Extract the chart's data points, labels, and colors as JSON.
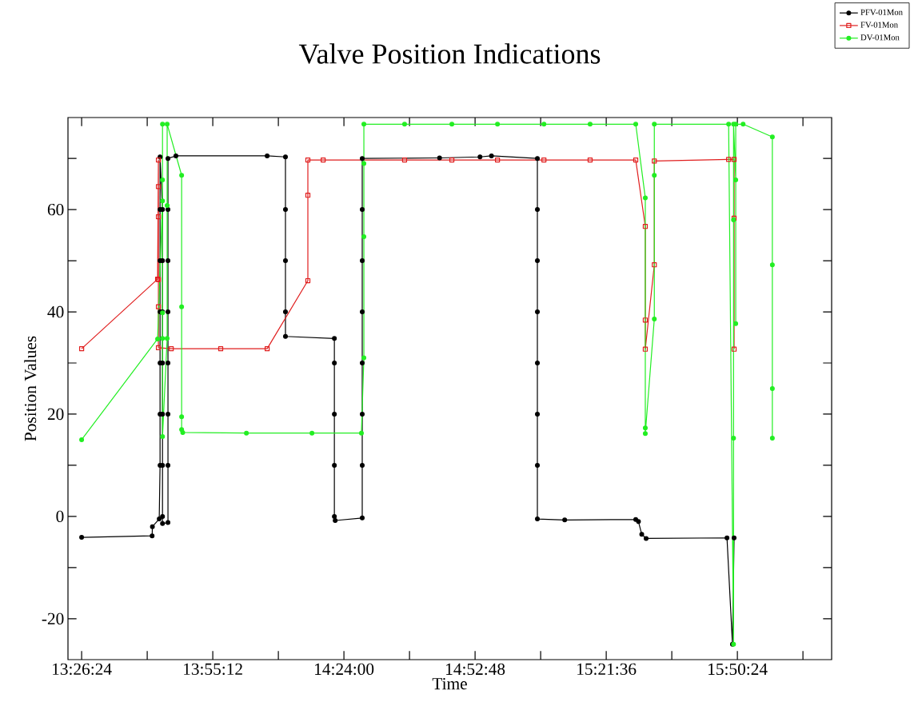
{
  "chart_data": {
    "type": "line",
    "title": "Valve Position Indications",
    "xlabel": "Time",
    "ylabel": "Position Values",
    "xlim": [
      13.39,
      16.185
    ],
    "ylim": [
      -28,
      78
    ],
    "xticks": [
      {
        "value": 13.44,
        "label": "13:26:24"
      },
      {
        "value": 13.68,
        "label": null
      },
      {
        "value": 13.92,
        "label": "13:55:12"
      },
      {
        "value": 14.16,
        "label": null
      },
      {
        "value": 14.4,
        "label": "14:24:00"
      },
      {
        "value": 14.64,
        "label": null
      },
      {
        "value": 14.88,
        "label": "14:52:48"
      },
      {
        "value": 15.12,
        "label": null
      },
      {
        "value": 15.36,
        "label": "15:21:36"
      },
      {
        "value": 15.6,
        "label": null
      },
      {
        "value": 15.84,
        "label": "15:50:24"
      },
      {
        "value": 16.08,
        "label": null
      }
    ],
    "yticks": [
      -20,
      {
        "value": -10,
        "label": null
      },
      0,
      {
        "value": 10,
        "label": null
      },
      20,
      {
        "value": 30,
        "label": null
      },
      40,
      {
        "value": 50,
        "label": null
      },
      60,
      {
        "value": 70,
        "label": null
      }
    ],
    "legend": "top right",
    "line_style": "solid",
    "series": [
      {
        "name": "PFV-01Mon",
        "color": "#000000",
        "marker": "circle",
        "x": [
          13.44,
          13.698,
          13.699,
          13.724,
          13.727,
          13.727,
          13.727,
          13.727,
          13.727,
          13.727,
          13.727,
          13.736,
          13.736,
          13.736,
          13.736,
          13.736,
          13.736,
          13.736,
          13.736,
          13.756,
          13.756,
          13.756,
          13.756,
          13.756,
          13.756,
          13.756,
          13.756,
          13.785,
          14.119,
          14.186,
          14.186,
          14.186,
          14.186,
          14.186,
          14.365,
          14.365,
          14.365,
          14.365,
          14.365,
          14.368,
          14.467,
          14.467,
          14.467,
          14.467,
          14.467,
          14.467,
          14.467,
          14.467,
          14.75,
          14.898,
          14.94,
          15.108,
          15.108,
          15.108,
          15.108,
          15.108,
          15.108,
          15.108,
          15.108,
          15.208,
          15.468,
          15.478,
          15.49,
          15.506,
          15.802,
          15.822,
          15.828
        ],
        "values": [
          -4.1,
          -3.8,
          -2.0,
          -0.5,
          10,
          20,
          30,
          40,
          50,
          60,
          70.3,
          60,
          50,
          40,
          30,
          20,
          10,
          0,
          -1.4,
          -1.2,
          10,
          20,
          30,
          40,
          50,
          60,
          70,
          70.5,
          70.5,
          70.3,
          60,
          50,
          40,
          35.2,
          34.8,
          30,
          20,
          10,
          0,
          -0.8,
          -0.3,
          10,
          20,
          30,
          40,
          50,
          60,
          70,
          70.1,
          70.3,
          70.5,
          70,
          60,
          50,
          40,
          30,
          20,
          10,
          -0.5,
          -0.7,
          -0.6,
          -1.0,
          -3.5,
          -4.3,
          -4.2,
          -25,
          -4.2
        ]
      },
      {
        "name": "FV-01Mon",
        "color": "#e01e1e",
        "marker": "square",
        "x": [
          13.44,
          13.718,
          13.721,
          13.721,
          13.721,
          13.721,
          13.721,
          13.721,
          13.768,
          13.949,
          14.119,
          14.268,
          14.268,
          14.268,
          14.324,
          14.622,
          14.795,
          14.962,
          15.132,
          15.301,
          15.468,
          15.503,
          15.503,
          15.503,
          15.536,
          15.536,
          15.808,
          15.828,
          15.828,
          15.828
        ],
        "values": [
          32.8,
          46.4,
          69.7,
          64.5,
          58.6,
          46.3,
          41,
          33,
          32.8,
          32.8,
          32.8,
          46.1,
          62.8,
          69.7,
          69.7,
          69.7,
          69.7,
          69.7,
          69.7,
          69.7,
          69.7,
          56.7,
          38.4,
          32.7,
          49.2,
          69.5,
          69.8,
          69.8,
          58.3,
          32.7
        ]
      },
      {
        "name": "DV-01Mon",
        "color": "#22ee22",
        "marker": "circle",
        "x": [
          13.44,
          13.718,
          13.736,
          13.736,
          13.736,
          13.736,
          13.736,
          13.736,
          13.753,
          13.753,
          13.753,
          13.806,
          13.806,
          13.806,
          13.806,
          13.81,
          14.043,
          14.283,
          14.464,
          14.473,
          14.473,
          14.473,
          14.473,
          14.622,
          14.795,
          14.962,
          15.132,
          15.301,
          15.468,
          15.503,
          15.503,
          15.503,
          15.536,
          15.536,
          15.536,
          15.808,
          15.826,
          15.826,
          15.826,
          15.826,
          15.834,
          15.834,
          15.834,
          15.861,
          15.968,
          15.968,
          15.968,
          15.968
        ],
        "values": [
          15,
          34.7,
          61.7,
          76.7,
          65.8,
          39.8,
          34.8,
          15.6,
          34.8,
          60.8,
          76.7,
          66.7,
          41,
          19.5,
          17,
          16.4,
          16.3,
          16.3,
          16.3,
          31,
          54.7,
          69,
          76.7,
          76.7,
          76.7,
          76.7,
          76.7,
          76.7,
          76.7,
          62.3,
          17.3,
          16.2,
          38.6,
          66.7,
          76.7,
          76.7,
          -25,
          15.3,
          58,
          76.7,
          65.8,
          37.7,
          76.7,
          76.7,
          74.2,
          49.2,
          25,
          15.3
        ]
      }
    ]
  }
}
